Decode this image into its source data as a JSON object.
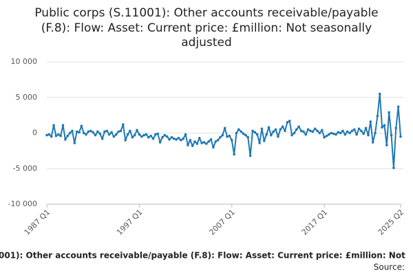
{
  "chart_data": {
    "type": "line",
    "title": [
      "Public corps (S.11001): Other accounts receivable/payable",
      "(F.8): Flow: Asset: Current price: £million: Not seasonally",
      "adjusted"
    ],
    "footer": "001): Other accounts receivable/payable (F.8): Flow: Asset: Current price: £million: Not",
    "source": "Source:",
    "categories": [
      "1987 Q1",
      null,
      null,
      null,
      null,
      null,
      null,
      null,
      null,
      null,
      null,
      null,
      null,
      null,
      null,
      null,
      null,
      null,
      null,
      null,
      null,
      null,
      null,
      null,
      null,
      null,
      null,
      null,
      null,
      null,
      null,
      null,
      null,
      null,
      null,
      null,
      null,
      null,
      null,
      null,
      "1997 Q1",
      null,
      null,
      null,
      null,
      null,
      null,
      null,
      null,
      null,
      null,
      null,
      null,
      null,
      null,
      null,
      null,
      null,
      null,
      null,
      null,
      null,
      null,
      null,
      null,
      null,
      null,
      null,
      null,
      null,
      null,
      null,
      null,
      null,
      null,
      null,
      null,
      null,
      null,
      null,
      "2007 Q1",
      null,
      null,
      null,
      null,
      null,
      null,
      null,
      null,
      null,
      null,
      null,
      null,
      null,
      null,
      null,
      null,
      null,
      null,
      null,
      null,
      null,
      null,
      null,
      null,
      null,
      null,
      null,
      null,
      null,
      null,
      null,
      null,
      null,
      null,
      null,
      null,
      null,
      null,
      null,
      "2017 Q1",
      null,
      null,
      null,
      null,
      null,
      null,
      null,
      null,
      null,
      null,
      null,
      null,
      null,
      null,
      null,
      null,
      null,
      null,
      null,
      null,
      null,
      null,
      null,
      null,
      null,
      null,
      null,
      null,
      null,
      null,
      null,
      null,
      "2025 Q2"
    ],
    "series": [
      {
        "color": "#1f78b4",
        "values": [
          -300,
          -200,
          -500,
          1100,
          -400,
          -200,
          -400,
          1100,
          -900,
          -400,
          0,
          300,
          -1400,
          200,
          100,
          1000,
          0,
          -200,
          200,
          300,
          100,
          -300,
          200,
          -100,
          -800,
          200,
          300,
          -200,
          100,
          -500,
          -200,
          200,
          300,
          1200,
          -1000,
          -200,
          300,
          -600,
          -300,
          400,
          -200,
          -500,
          -300,
          -200,
          -600,
          -400,
          -800,
          -200,
          -100,
          -1300,
          -600,
          -300,
          -500,
          -900,
          -600,
          -800,
          -900,
          -700,
          -1000,
          -800,
          -200,
          -1700,
          -1000,
          -1800,
          -1200,
          -1500,
          -700,
          -1400,
          -1300,
          -1500,
          -1200,
          -900,
          -2000,
          -1200,
          -1000,
          -600,
          -300,
          700,
          -500,
          -400,
          -1000,
          -3000,
          0,
          500,
          200,
          -100,
          -300,
          -600,
          -3200,
          300,
          100,
          -200,
          -1400,
          600,
          -1100,
          -200,
          800,
          -300,
          200,
          500,
          -500,
          500,
          900,
          300,
          1500,
          1700,
          -300,
          0,
          500,
          900,
          300,
          200,
          -200,
          500,
          300,
          200,
          600,
          300,
          0,
          400,
          -600,
          -400,
          -200,
          0,
          -100,
          -200,
          100,
          0,
          300,
          -200,
          200,
          0,
          300,
          500,
          -200,
          600,
          300,
          -100,
          700,
          -300,
          1600,
          -1300,
          0,
          2400,
          5500,
          800,
          1100,
          -1700,
          2900,
          -300,
          -4900,
          700,
          3700,
          -500
        ]
      }
    ],
    "ylim": [
      -10000,
      10000
    ],
    "yticks": [
      {
        "value": -10000,
        "label": "-10 000"
      },
      {
        "value": -5000,
        "label": "-5 000"
      },
      0,
      {
        "value": 5000,
        "label": "5 000"
      },
      {
        "value": 10000,
        "label": "10 000"
      }
    ],
    "grid": true
  }
}
